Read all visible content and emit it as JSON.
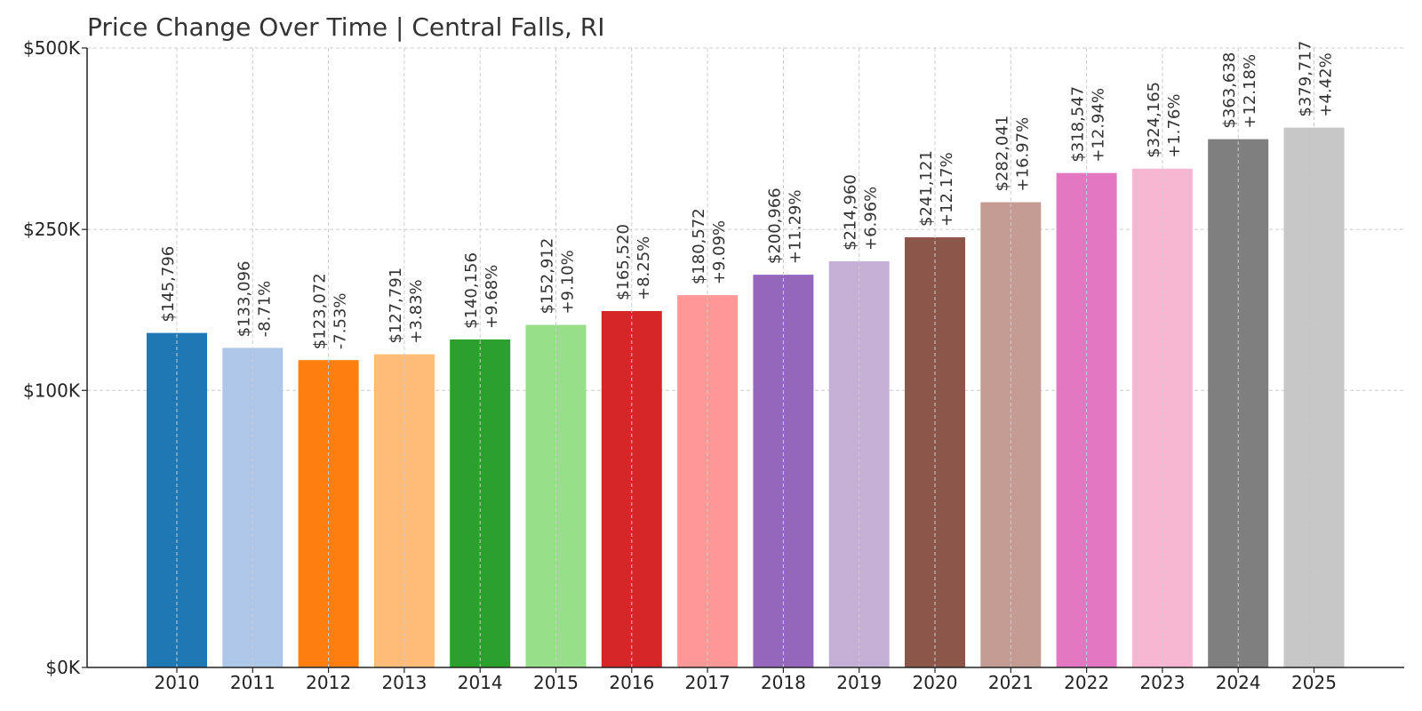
{
  "chart_data": {
    "type": "bar",
    "title": "Price Change Over Time | Central Falls, RI",
    "xlabel": "",
    "ylabel": "",
    "ylim": [
      0,
      500000
    ],
    "y_scale": "sqrt",
    "y_ticks": [
      0,
      100000,
      250000,
      500000
    ],
    "y_tick_labels": [
      "$0K",
      "$100K",
      "$250K",
      "$500K"
    ],
    "grid": true,
    "categories": [
      "2010",
      "2011",
      "2012",
      "2013",
      "2014",
      "2015",
      "2016",
      "2017",
      "2018",
      "2019",
      "2020",
      "2021",
      "2022",
      "2023",
      "2024",
      "2025"
    ],
    "values": [
      145796,
      133096,
      123072,
      127791,
      140156,
      152912,
      165520,
      180572,
      200966,
      214960,
      241121,
      282041,
      318547,
      324165,
      363638,
      379717
    ],
    "value_labels": [
      "$145,796",
      "$133,096",
      "$123,072",
      "$127,791",
      "$140,156",
      "$152,912",
      "$165,520",
      "$180,572",
      "$200,966",
      "$214,960",
      "$241,121",
      "$282,041",
      "$318,547",
      "$324,165",
      "$363,638",
      "$379,717"
    ],
    "change_labels": [
      "",
      "-8.71%",
      "-7.53%",
      "+3.83%",
      "+9.68%",
      "+9.10%",
      "+8.25%",
      "+9.09%",
      "+11.29%",
      "+6.96%",
      "+12.17%",
      "+16.97%",
      "+12.94%",
      "+1.76%",
      "+12.18%",
      "+4.42%"
    ],
    "colors": [
      "#1f77b4",
      "#aec7e8",
      "#ff7f0e",
      "#ffbb78",
      "#2ca02c",
      "#98df8a",
      "#d62728",
      "#ff9896",
      "#9467bd",
      "#c5b0d5",
      "#8c564b",
      "#c49c94",
      "#e377c2",
      "#f7b6d2",
      "#7f7f7f",
      "#c7c7c7"
    ]
  }
}
